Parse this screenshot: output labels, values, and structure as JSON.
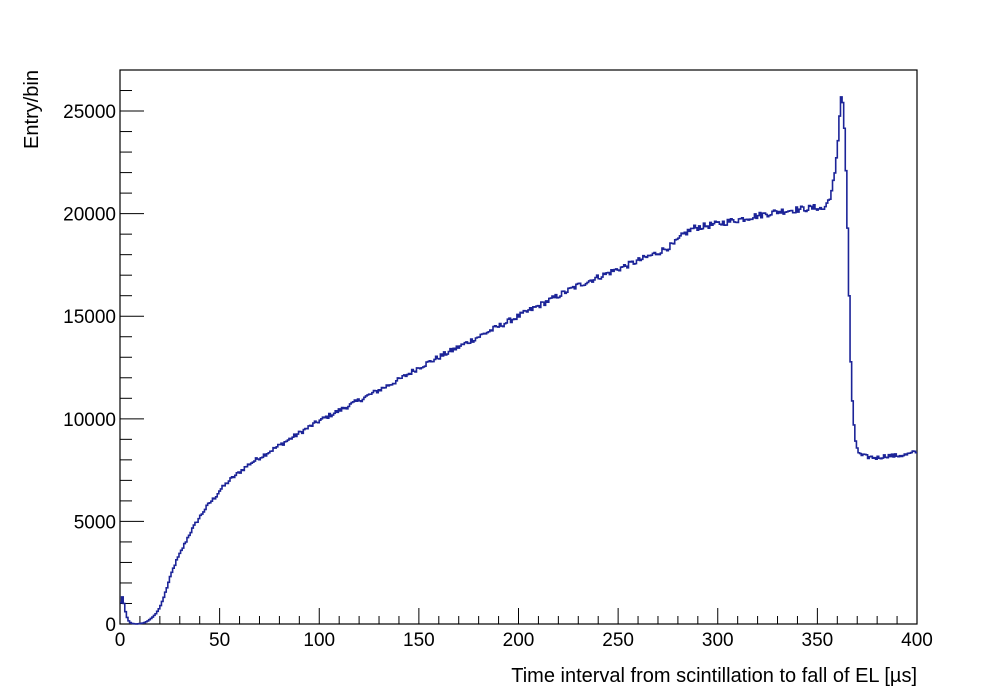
{
  "chart_data": {
    "type": "line",
    "title": "",
    "xlabel": "Time interval from scintillation to fall of EL [µs]",
    "ylabel": "Entry/bin",
    "xlim": [
      0,
      400
    ],
    "ylim": [
      0,
      27000
    ],
    "x_ticks": [
      {
        "value": 0,
        "label": "0"
      },
      {
        "value": 50,
        "label": "50"
      },
      {
        "value": 100,
        "label": "100"
      },
      {
        "value": 150,
        "label": "150"
      },
      {
        "value": 200,
        "label": "200"
      },
      {
        "value": 250,
        "label": "250"
      },
      {
        "value": 300,
        "label": "300"
      },
      {
        "value": 350,
        "label": "350"
      },
      {
        "value": 400,
        "label": "400"
      }
    ],
    "y_ticks": [
      {
        "value": 0,
        "label": "0"
      },
      {
        "value": 5000,
        "label": "5000"
      },
      {
        "value": 10000,
        "label": "10000"
      },
      {
        "value": 15000,
        "label": "15000"
      },
      {
        "value": 20000,
        "label": "20000"
      },
      {
        "value": 25000,
        "label": "25000"
      }
    ],
    "grid": false,
    "histogram_style": "step",
    "line_color": "#1c2498",
    "series": [
      {
        "x": [
          0,
          1,
          2,
          3,
          4,
          5,
          6,
          8,
          10,
          12,
          14,
          16,
          18,
          20,
          22,
          24,
          26,
          28,
          30,
          32,
          35,
          38,
          40,
          42,
          45,
          48,
          50,
          55,
          60,
          65,
          70,
          75,
          80,
          85,
          90,
          95,
          100,
          110,
          120,
          130,
          140,
          150,
          160,
          170,
          180,
          190,
          200,
          210,
          220,
          230,
          240,
          250,
          260,
          270,
          278,
          283,
          288,
          300,
          310,
          320,
          330,
          340,
          350,
          353,
          355,
          357,
          359,
          360,
          361,
          362,
          363,
          364,
          365,
          366,
          367,
          368,
          369,
          370,
          371,
          372,
          373,
          375,
          380,
          385,
          390,
          395,
          400
        ],
        "y": [
          800,
          1400,
          1000,
          500,
          200,
          80,
          30,
          0,
          20,
          50,
          150,
          300,
          500,
          800,
          1300,
          1900,
          2500,
          3000,
          3400,
          3800,
          4400,
          4900,
          5200,
          5500,
          5900,
          6200,
          6500,
          7000,
          7400,
          7800,
          8100,
          8400,
          8700,
          9000,
          9300,
          9600,
          9900,
          10400,
          10900,
          11400,
          11900,
          12500,
          13000,
          13500,
          14000,
          14500,
          15000,
          15500,
          16000,
          16500,
          16900,
          17300,
          17700,
          18100,
          18500,
          19000,
          19300,
          19500,
          19700,
          19900,
          20100,
          20200,
          20300,
          20200,
          20500,
          21000,
          22000,
          23000,
          24500,
          25800,
          25300,
          23500,
          20000,
          16000,
          12000,
          10000,
          9000,
          8600,
          8300,
          8200,
          8200,
          8150,
          8100,
          8200,
          8200,
          8250,
          8400
        ]
      }
    ]
  }
}
